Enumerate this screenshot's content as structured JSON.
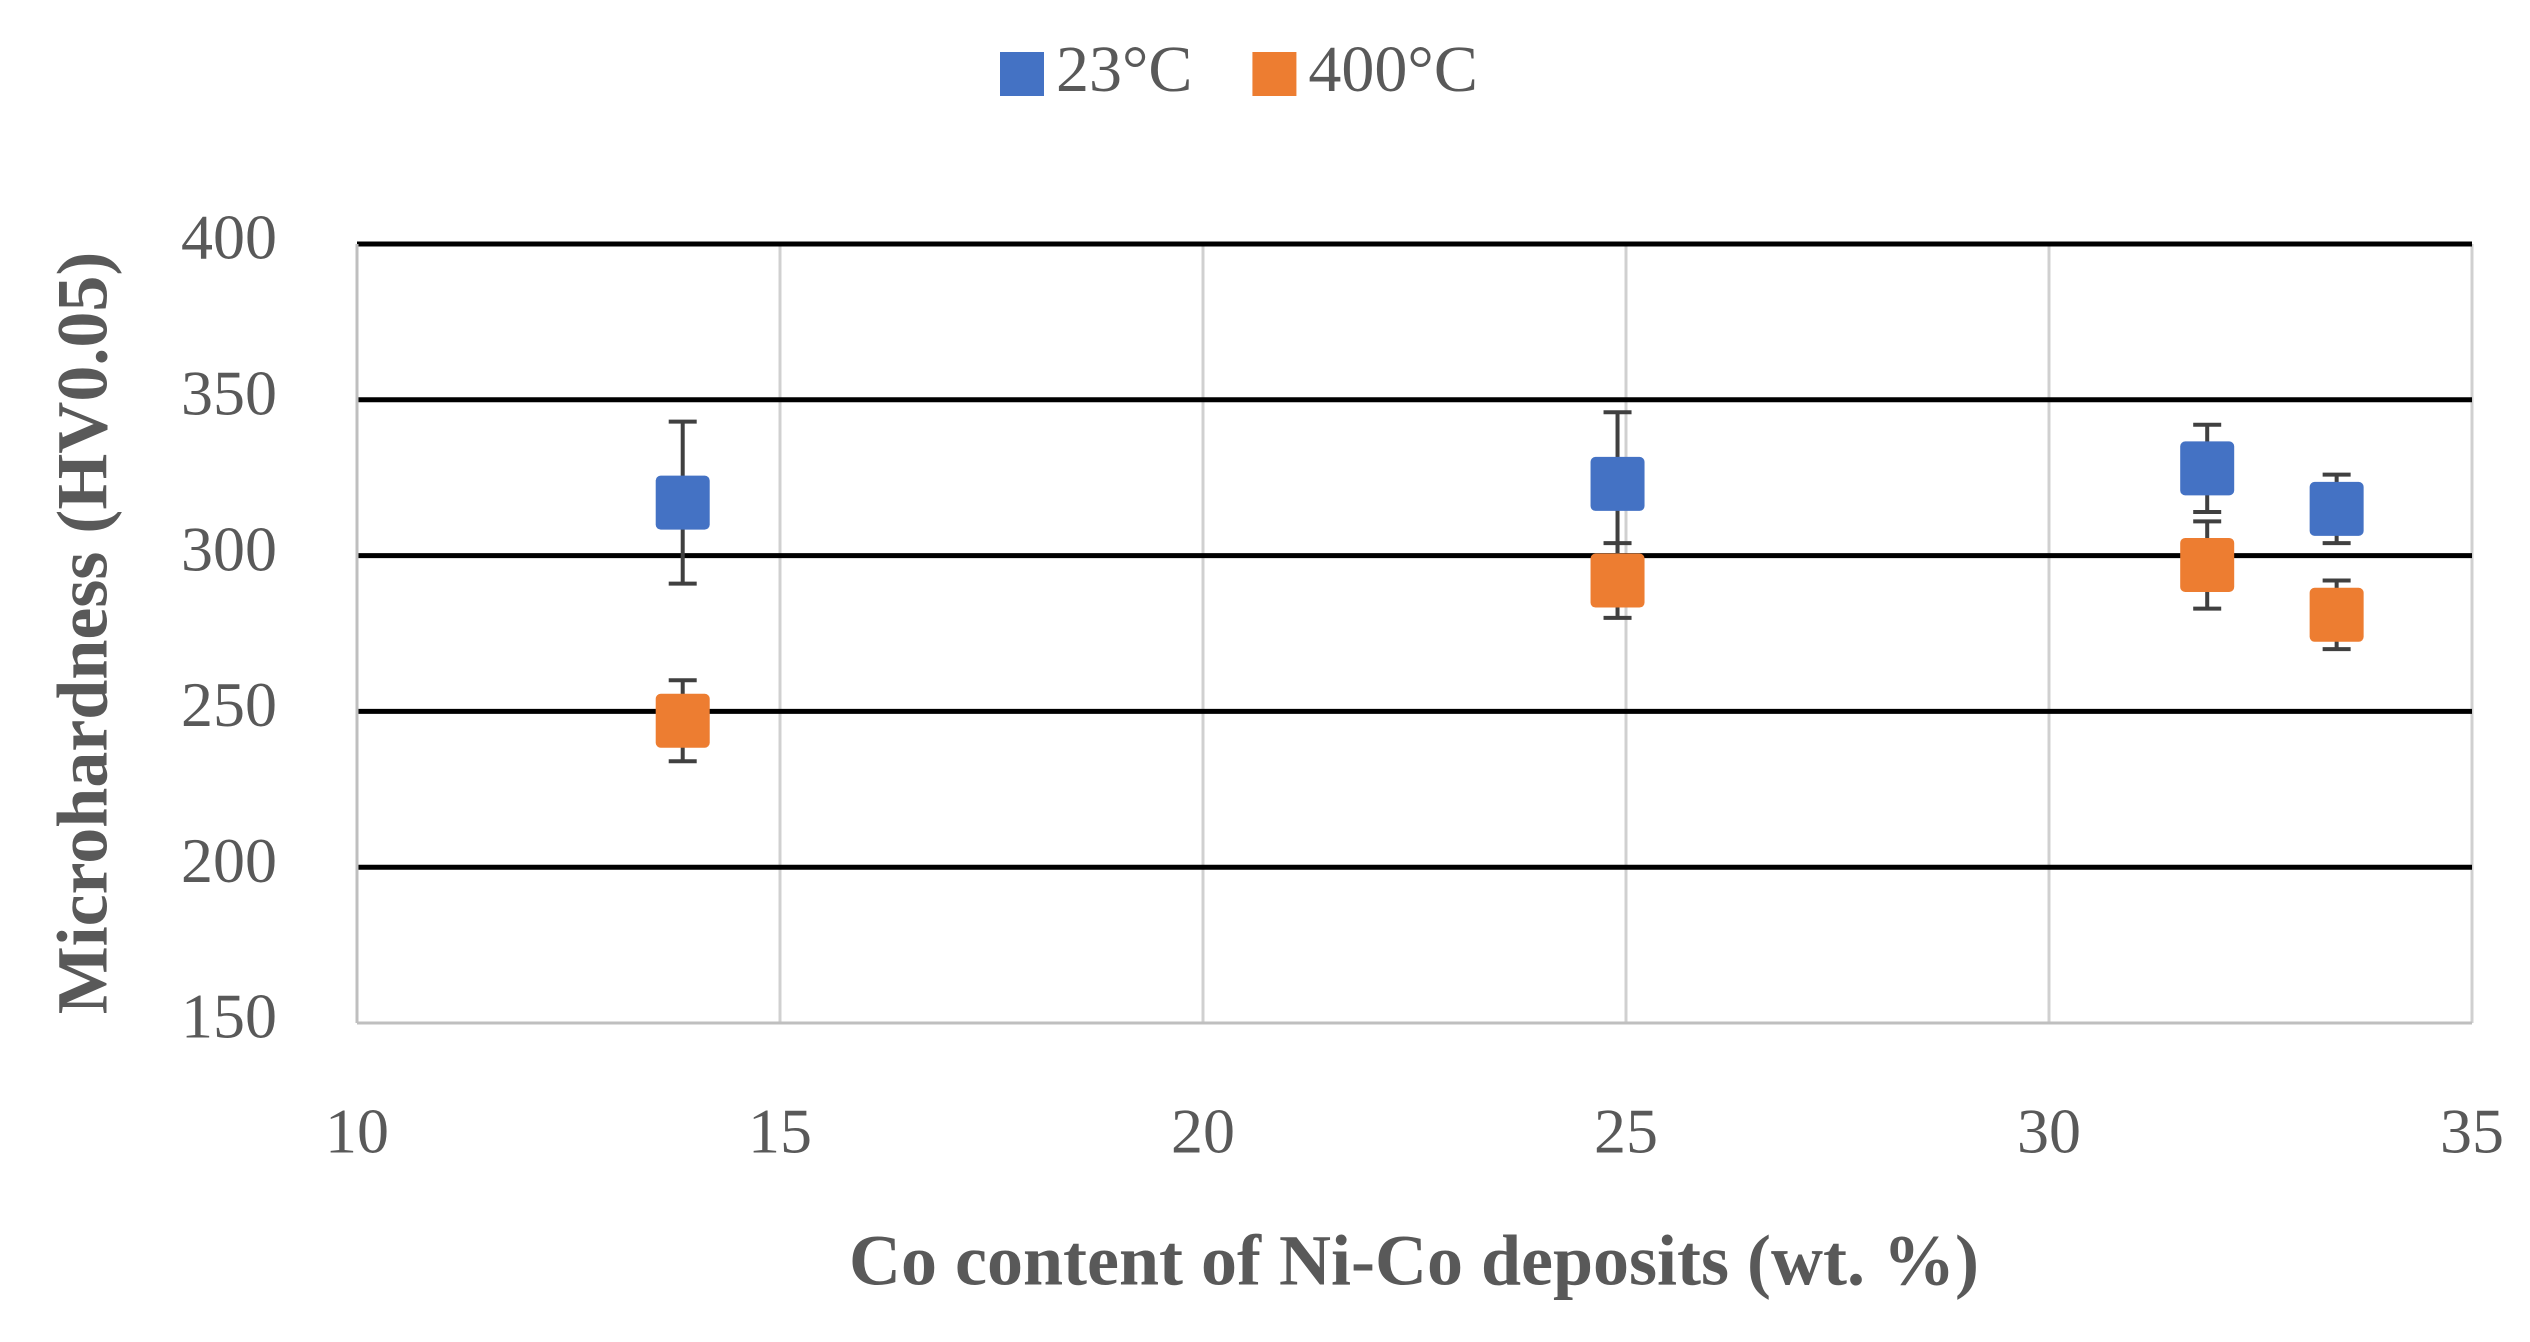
{
  "chart_data": {
    "type": "scatter",
    "xlabel": "Co content of Ni-Co deposits (wt. %)",
    "ylabel": "Microhardness (HV0.05)",
    "x": [
      13.85,
      24.9,
      31.87,
      33.4
    ],
    "series": [
      {
        "name": "23°C",
        "color": "#4472c4",
        "values": [
          317,
          323,
          328,
          315
        ],
        "errors": [
          26,
          23,
          14,
          11
        ]
      },
      {
        "name": "400°C",
        "color": "#ed7d31",
        "values": [
          247,
          292,
          297,
          281
        ],
        "errors": [
          13,
          12,
          14,
          11
        ]
      }
    ],
    "xlim": [
      10,
      35
    ],
    "xticks": [
      10,
      15,
      20,
      25,
      30,
      35
    ],
    "ylim": [
      150,
      400
    ],
    "yticks": [
      150,
      200,
      250,
      300,
      350,
      400
    ],
    "grid": true,
    "legend": "top"
  }
}
